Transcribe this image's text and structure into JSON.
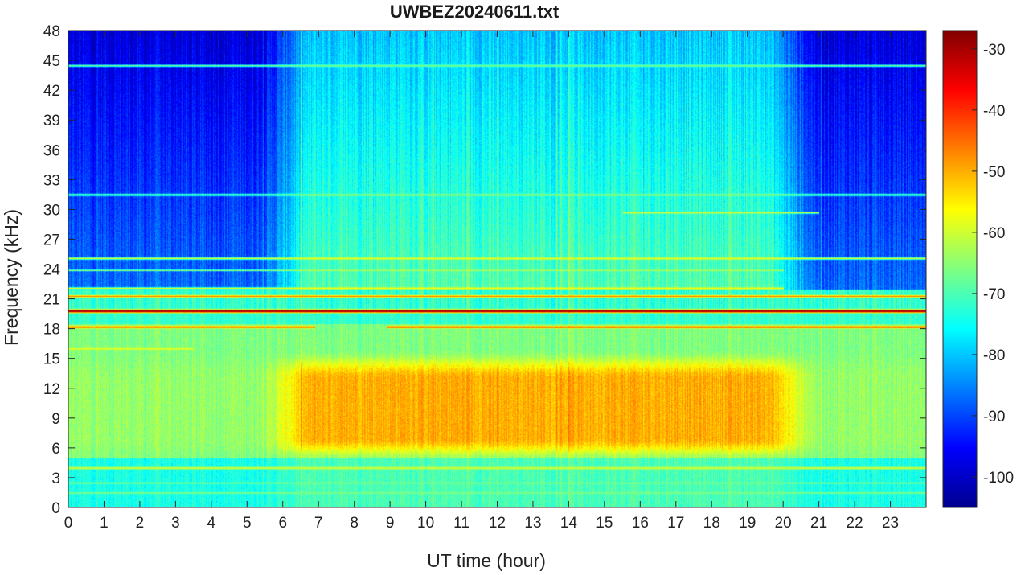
{
  "chart_data": {
    "type": "heatmap",
    "title": "UWBEZ20240611.txt",
    "xlabel": "UT time (hour)",
    "ylabel": "Frequency (kHz)",
    "xlim": [
      0,
      24
    ],
    "ylim": [
      0,
      48
    ],
    "x_ticks": [
      "0",
      "1",
      "2",
      "3",
      "4",
      "5",
      "6",
      "7",
      "8",
      "9",
      "10",
      "11",
      "12",
      "13",
      "14",
      "15",
      "16",
      "17",
      "18",
      "19",
      "20",
      "21",
      "22",
      "23"
    ],
    "y_ticks": [
      "0",
      "3",
      "6",
      "9",
      "12",
      "15",
      "18",
      "21",
      "24",
      "27",
      "30",
      "33",
      "36",
      "39",
      "42",
      "45",
      "48"
    ],
    "colorbar": {
      "colormap": "jet",
      "range": [
        -105,
        -27
      ],
      "ticks": [
        "-30",
        "-40",
        "-50",
        "-60",
        "-70",
        "-80",
        "-90",
        "-100"
      ]
    },
    "features": {
      "strong_line_khz": 19.8,
      "secondary_line_khz": 18.2,
      "enhanced_band_khz": [
        5,
        15
      ],
      "enhanced_hours": [
        6,
        20.5
      ]
    }
  }
}
